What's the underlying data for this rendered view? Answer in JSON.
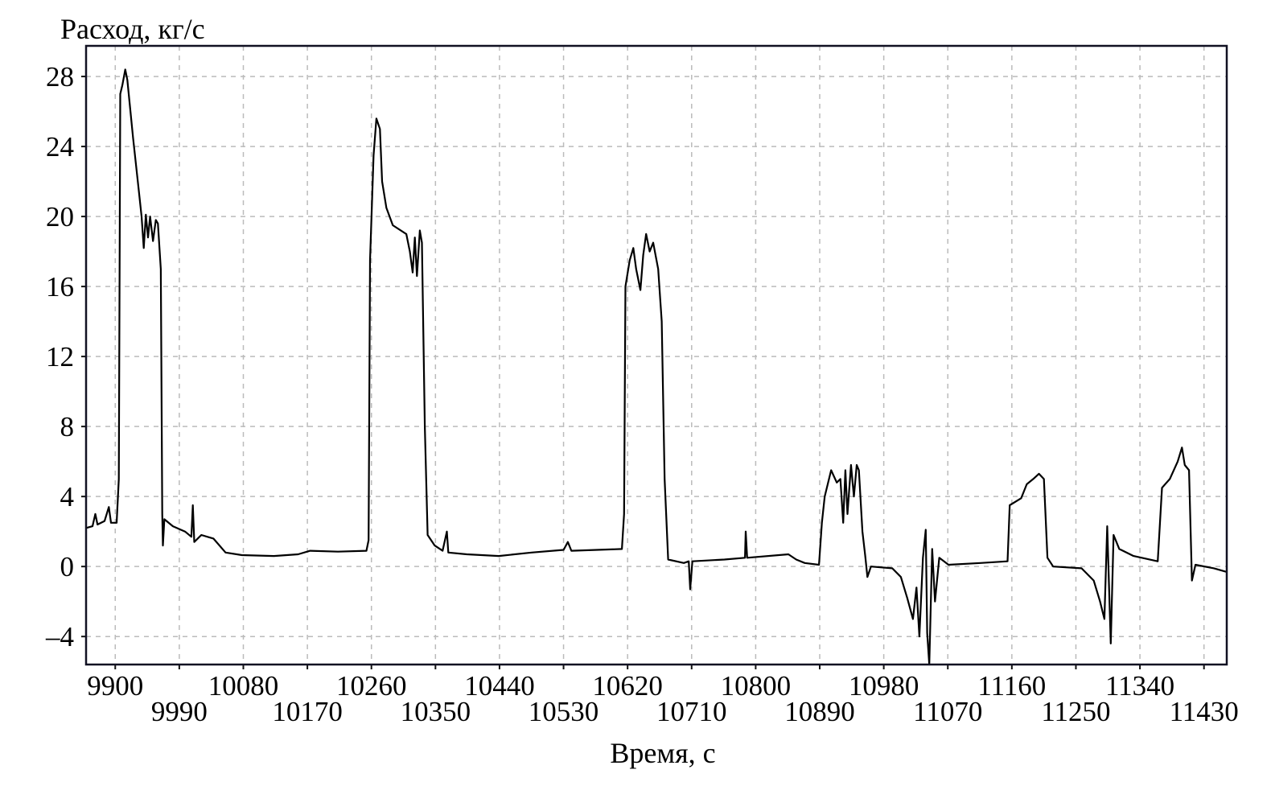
{
  "chart_data": {
    "type": "line",
    "title": "",
    "xlabel": "Время, с",
    "ylabel": "Расход, кг/с",
    "xlim": [
      9859,
      11462
    ],
    "ylim": [
      -5.6,
      29.75
    ],
    "grid": true,
    "x_ticks": [
      9900,
      9990,
      10080,
      10170,
      10260,
      10350,
      10440,
      10530,
      10620,
      10710,
      10800,
      10890,
      10980,
      11070,
      11160,
      11250,
      11340,
      11430
    ],
    "y_ticks": [
      -4,
      0,
      4,
      8,
      12,
      16,
      20,
      24,
      28
    ],
    "y_tick_labels": [
      "–4",
      "0",
      "4",
      "8",
      "12",
      "16",
      "20",
      "24",
      "28"
    ],
    "colors": {
      "line": "#000000",
      "grid": "#bbbbbb",
      "frame": "#111122"
    },
    "series": [
      {
        "points": [
          [
            9859,
            2.2
          ],
          [
            9868,
            2.3
          ],
          [
            9872,
            3.0
          ],
          [
            9875,
            2.4
          ],
          [
            9885,
            2.6
          ],
          [
            9891,
            3.4
          ],
          [
            9894,
            2.5
          ],
          [
            9902,
            2.5
          ],
          [
            9905,
            5
          ],
          [
            9907,
            27
          ],
          [
            9910,
            27.5
          ],
          [
            9914,
            28.4
          ],
          [
            9917,
            27.8
          ],
          [
            9925,
            24.5
          ],
          [
            9933,
            21.5
          ],
          [
            9937,
            20
          ],
          [
            9940,
            18.2
          ],
          [
            9943,
            20.1
          ],
          [
            9946,
            18.8
          ],
          [
            9949,
            20
          ],
          [
            9953,
            18.6
          ],
          [
            9957,
            19.8
          ],
          [
            9960,
            19.6
          ],
          [
            9964,
            17
          ],
          [
            9966,
            3
          ],
          [
            9967,
            1.2
          ],
          [
            9969,
            2.7
          ],
          [
            9981,
            2.3
          ],
          [
            9998,
            2.0
          ],
          [
            10007,
            1.7
          ],
          [
            10009,
            3.5
          ],
          [
            10011,
            1.4
          ],
          [
            10021,
            1.8
          ],
          [
            10038,
            1.6
          ],
          [
            10055,
            0.8
          ],
          [
            10078,
            0.65
          ],
          [
            10123,
            0.6
          ],
          [
            10157,
            0.7
          ],
          [
            10174,
            0.9
          ],
          [
            10213,
            0.85
          ],
          [
            10253,
            0.9
          ],
          [
            10256,
            1.5
          ],
          [
            10258,
            17.5
          ],
          [
            10263,
            23.5
          ],
          [
            10267,
            25.6
          ],
          [
            10272,
            25
          ],
          [
            10275,
            22
          ],
          [
            10281,
            20.5
          ],
          [
            10290,
            19.5
          ],
          [
            10309,
            19
          ],
          [
            10314,
            18
          ],
          [
            10318,
            16.8
          ],
          [
            10321,
            18.8
          ],
          [
            10324,
            16.6
          ],
          [
            10328,
            19.2
          ],
          [
            10331,
            18.5
          ],
          [
            10335,
            8
          ],
          [
            10339,
            1.8
          ],
          [
            10349,
            1.2
          ],
          [
            10360,
            0.9
          ],
          [
            10366,
            2.0
          ],
          [
            10368,
            0.8
          ],
          [
            10394,
            0.7
          ],
          [
            10439,
            0.6
          ],
          [
            10485,
            0.8
          ],
          [
            10530,
            0.95
          ],
          [
            10536,
            1.4
          ],
          [
            10541,
            0.9
          ],
          [
            10612,
            1.0
          ],
          [
            10615,
            3
          ],
          [
            10617,
            16
          ],
          [
            10623,
            17.5
          ],
          [
            10628,
            18.2
          ],
          [
            10632,
            17
          ],
          [
            10638,
            15.8
          ],
          [
            10642,
            17.8
          ],
          [
            10646,
            19
          ],
          [
            10651,
            18
          ],
          [
            10656,
            18.5
          ],
          [
            10663,
            17
          ],
          [
            10668,
            14
          ],
          [
            10672,
            5
          ],
          [
            10677,
            0.4
          ],
          [
            10699,
            0.2
          ],
          [
            10706,
            0.3
          ],
          [
            10708,
            -1.3
          ],
          [
            10711,
            0.3
          ],
          [
            10756,
            0.4
          ],
          [
            10785,
            0.5
          ],
          [
            10786,
            2
          ],
          [
            10788,
            0.5
          ],
          [
            10846,
            0.7
          ],
          [
            10857,
            0.4
          ],
          [
            10869,
            0.2
          ],
          [
            10889,
            0.1
          ],
          [
            10893,
            2.5
          ],
          [
            10897,
            4
          ],
          [
            10906,
            5.5
          ],
          [
            10914,
            4.8
          ],
          [
            10919,
            5.0
          ],
          [
            10923,
            2.5
          ],
          [
            10926,
            5.5
          ],
          [
            10929,
            3
          ],
          [
            10934,
            5.8
          ],
          [
            10938,
            4
          ],
          [
            10942,
            5.8
          ],
          [
            10945,
            5.5
          ],
          [
            10950,
            2
          ],
          [
            10954,
            0.6
          ],
          [
            10957,
            -0.6
          ],
          [
            10962,
            0
          ],
          [
            10992,
            -0.1
          ],
          [
            11004,
            -0.6
          ],
          [
            11013,
            -1.8
          ],
          [
            11021,
            -3
          ],
          [
            11026,
            -1.2
          ],
          [
            11030,
            -4
          ],
          [
            11035,
            0.5
          ],
          [
            11039,
            2.1
          ],
          [
            11041,
            -3.8
          ],
          [
            11044,
            -5.6
          ],
          [
            11048,
            1
          ],
          [
            11052,
            -2
          ],
          [
            11058,
            0.5
          ],
          [
            11071,
            0.1
          ],
          [
            11116,
            0.2
          ],
          [
            11154,
            0.3
          ],
          [
            11157,
            3.5
          ],
          [
            11173,
            3.9
          ],
          [
            11181,
            4.7
          ],
          [
            11190,
            5
          ],
          [
            11198,
            5.3
          ],
          [
            11205,
            5.0
          ],
          [
            11210,
            0.5
          ],
          [
            11218,
            0
          ],
          [
            11258,
            -0.1
          ],
          [
            11275,
            -0.8
          ],
          [
            11284,
            -2
          ],
          [
            11290,
            -3
          ],
          [
            11294,
            2.3
          ],
          [
            11299,
            -4.4
          ],
          [
            11303,
            1.8
          ],
          [
            11311,
            1
          ],
          [
            11331,
            0.6
          ],
          [
            11365,
            0.3
          ],
          [
            11371,
            4.5
          ],
          [
            11382,
            5
          ],
          [
            11393,
            6
          ],
          [
            11399,
            6.8
          ],
          [
            11403,
            5.8
          ],
          [
            11409,
            5.5
          ],
          [
            11413,
            -0.8
          ],
          [
            11418,
            0.1
          ],
          [
            11444,
            -0.1
          ],
          [
            11461,
            -0.3
          ]
        ]
      }
    ]
  }
}
